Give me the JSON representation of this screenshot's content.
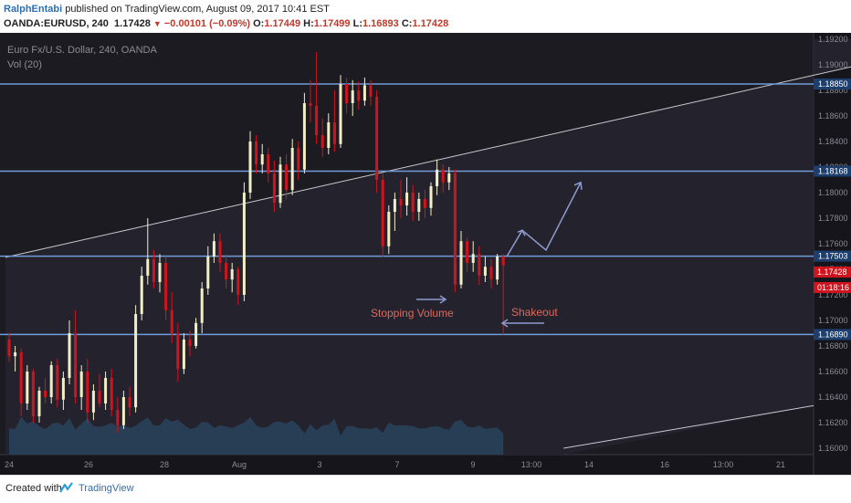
{
  "header": {
    "author": "RalphEntabi",
    "published": "published on TradingView.com, August 09, 2017 10:41 EST",
    "symbol": "OANDA:EURUSD, 240",
    "last": "1.17428",
    "change": "−0.00101 (−0.09%)",
    "o_label": "O:",
    "o_value": "1.17449",
    "h_label": "H:",
    "h_value": "1.17499",
    "l_label": "L:",
    "l_value": "1.16893",
    "c_label": "C:",
    "c_value": "1.17428"
  },
  "legend": {
    "title": "Euro Fx/U.S. Dollar, 240, OANDA",
    "volume": "Vol (20)"
  },
  "annotations": {
    "stopping_volume": "Stopping Volume",
    "shakeout": "Shakeout"
  },
  "price_tags": {
    "last_price": "1.17428",
    "countdown": "01:18:16"
  },
  "footer": {
    "created_with": "Created with",
    "brand": "TradingView"
  },
  "colors": {
    "background": "#1c1b22",
    "bull": "#f2efc8",
    "bear": "#d0141e",
    "level": "#6f9bd8",
    "channel": "#c9c9cf",
    "annotation_text": "#e0685a",
    "arrow": "#8f9bd0",
    "volume_fill": "#2a4a66"
  },
  "chart_data": {
    "type": "candlestick",
    "symbol": "EURUSD",
    "timeframe": "240",
    "y_axis_ticks": [
      "1.19200",
      "1.19000",
      "1.18800",
      "1.18600",
      "1.18400",
      "1.18200",
      "1.18000",
      "1.17800",
      "1.17600",
      "1.17400",
      "1.17200",
      "1.17000",
      "1.16800",
      "1.16600",
      "1.16400",
      "1.16200",
      "1.16000"
    ],
    "ylim": [
      1.1595,
      1.1925
    ],
    "x_axis_ticks": [
      "24",
      "26",
      "28",
      "Aug",
      "3",
      "7",
      "9",
      "13:00",
      "14",
      "16",
      "13:00",
      "21"
    ],
    "horizontal_levels": [
      "1.18850",
      "1.18168",
      "1.17503",
      "1.16890"
    ],
    "channel": {
      "upper": [
        {
          "bar": 0,
          "price": 1.175
        },
        {
          "bar": 160,
          "price": 1.192
        }
      ],
      "lower": [
        {
          "bar": 92,
          "price": 1.16
        },
        {
          "bar": 163,
          "price": 1.1657
        }
      ]
    },
    "projection_path": [
      1.17503,
      1.17705,
      1.1755,
      1.1808
    ],
    "candles": [
      {
        "o": 1.1685,
        "h": 1.169,
        "l": 1.1668,
        "c": 1.1672
      },
      {
        "o": 1.1672,
        "h": 1.168,
        "l": 1.166,
        "c": 1.1675
      },
      {
        "o": 1.1675,
        "h": 1.1678,
        "l": 1.1625,
        "c": 1.1635
      },
      {
        "o": 1.1635,
        "h": 1.1665,
        "l": 1.163,
        "c": 1.166
      },
      {
        "o": 1.166,
        "h": 1.1662,
        "l": 1.162,
        "c": 1.1625
      },
      {
        "o": 1.1625,
        "h": 1.1648,
        "l": 1.162,
        "c": 1.1645
      },
      {
        "o": 1.1645,
        "h": 1.1655,
        "l": 1.1635,
        "c": 1.164
      },
      {
        "o": 1.164,
        "h": 1.1668,
        "l": 1.1635,
        "c": 1.1665
      },
      {
        "o": 1.1665,
        "h": 1.167,
        "l": 1.1632,
        "c": 1.1638
      },
      {
        "o": 1.1638,
        "h": 1.166,
        "l": 1.163,
        "c": 1.1655
      },
      {
        "o": 1.1655,
        "h": 1.17,
        "l": 1.165,
        "c": 1.169
      },
      {
        "o": 1.169,
        "h": 1.1708,
        "l": 1.1635,
        "c": 1.164
      },
      {
        "o": 1.164,
        "h": 1.1665,
        "l": 1.163,
        "c": 1.166
      },
      {
        "o": 1.166,
        "h": 1.167,
        "l": 1.162,
        "c": 1.1628
      },
      {
        "o": 1.1628,
        "h": 1.165,
        "l": 1.1622,
        "c": 1.1645
      },
      {
        "o": 1.1645,
        "h": 1.1658,
        "l": 1.1632,
        "c": 1.1635
      },
      {
        "o": 1.1635,
        "h": 1.166,
        "l": 1.163,
        "c": 1.1655
      },
      {
        "o": 1.1655,
        "h": 1.1662,
        "l": 1.1625,
        "c": 1.163
      },
      {
        "o": 1.163,
        "h": 1.164,
        "l": 1.1612,
        "c": 1.1618
      },
      {
        "o": 1.1618,
        "h": 1.1645,
        "l": 1.1615,
        "c": 1.164
      },
      {
        "o": 1.164,
        "h": 1.1648,
        "l": 1.1625,
        "c": 1.1632
      },
      {
        "o": 1.1632,
        "h": 1.1712,
        "l": 1.1628,
        "c": 1.1705
      },
      {
        "o": 1.1705,
        "h": 1.1742,
        "l": 1.17,
        "c": 1.1735
      },
      {
        "o": 1.1735,
        "h": 1.178,
        "l": 1.1728,
        "c": 1.1748
      },
      {
        "o": 1.1748,
        "h": 1.1755,
        "l": 1.1725,
        "c": 1.173
      },
      {
        "o": 1.173,
        "h": 1.1752,
        "l": 1.1722,
        "c": 1.1745
      },
      {
        "o": 1.1745,
        "h": 1.175,
        "l": 1.17,
        "c": 1.1708
      },
      {
        "o": 1.1708,
        "h": 1.1722,
        "l": 1.1682,
        "c": 1.169
      },
      {
        "o": 1.169,
        "h": 1.1698,
        "l": 1.1652,
        "c": 1.1662
      },
      {
        "o": 1.1662,
        "h": 1.169,
        "l": 1.1658,
        "c": 1.1685
      },
      {
        "o": 1.1685,
        "h": 1.1692,
        "l": 1.1672,
        "c": 1.168
      },
      {
        "o": 1.168,
        "h": 1.1702,
        "l": 1.1678,
        "c": 1.1698
      },
      {
        "o": 1.1698,
        "h": 1.173,
        "l": 1.169,
        "c": 1.1725
      },
      {
        "o": 1.1725,
        "h": 1.1758,
        "l": 1.172,
        "c": 1.175
      },
      {
        "o": 1.175,
        "h": 1.1768,
        "l": 1.1745,
        "c": 1.1762
      },
      {
        "o": 1.1762,
        "h": 1.1768,
        "l": 1.1738,
        "c": 1.1745
      },
      {
        "o": 1.1745,
        "h": 1.1752,
        "l": 1.1725,
        "c": 1.1732
      },
      {
        "o": 1.1732,
        "h": 1.1745,
        "l": 1.1722,
        "c": 1.174
      },
      {
        "o": 1.174,
        "h": 1.1742,
        "l": 1.1712,
        "c": 1.172
      },
      {
        "o": 1.172,
        "h": 1.1808,
        "l": 1.1715,
        "c": 1.18
      },
      {
        "o": 1.18,
        "h": 1.1848,
        "l": 1.1795,
        "c": 1.184
      },
      {
        "o": 1.184,
        "h": 1.1845,
        "l": 1.1815,
        "c": 1.1822
      },
      {
        "o": 1.1822,
        "h": 1.1838,
        "l": 1.1815,
        "c": 1.183
      },
      {
        "o": 1.183,
        "h": 1.1835,
        "l": 1.1808,
        "c": 1.1815
      },
      {
        "o": 1.1815,
        "h": 1.1825,
        "l": 1.1785,
        "c": 1.1792
      },
      {
        "o": 1.1792,
        "h": 1.1828,
        "l": 1.1788,
        "c": 1.1822
      },
      {
        "o": 1.1822,
        "h": 1.183,
        "l": 1.1795,
        "c": 1.1802
      },
      {
        "o": 1.1802,
        "h": 1.1842,
        "l": 1.1798,
        "c": 1.1835
      },
      {
        "o": 1.1835,
        "h": 1.184,
        "l": 1.181,
        "c": 1.1818
      },
      {
        "o": 1.1818,
        "h": 1.1878,
        "l": 1.1815,
        "c": 1.187
      },
      {
        "o": 1.187,
        "h": 1.1888,
        "l": 1.1855,
        "c": 1.1868
      },
      {
        "o": 1.1868,
        "h": 1.191,
        "l": 1.1838,
        "c": 1.1845
      },
      {
        "o": 1.1845,
        "h": 1.1858,
        "l": 1.1828,
        "c": 1.1835
      },
      {
        "o": 1.1835,
        "h": 1.1862,
        "l": 1.183,
        "c": 1.1855
      },
      {
        "o": 1.1855,
        "h": 1.188,
        "l": 1.1832,
        "c": 1.1838
      },
      {
        "o": 1.1838,
        "h": 1.1892,
        "l": 1.1835,
        "c": 1.1885
      },
      {
        "o": 1.1885,
        "h": 1.189,
        "l": 1.1862,
        "c": 1.187
      },
      {
        "o": 1.187,
        "h": 1.1888,
        "l": 1.186,
        "c": 1.188
      },
      {
        "o": 1.188,
        "h": 1.1887,
        "l": 1.1865,
        "c": 1.1872
      },
      {
        "o": 1.1872,
        "h": 1.189,
        "l": 1.1868,
        "c": 1.1884
      },
      {
        "o": 1.1884,
        "h": 1.1888,
        "l": 1.1868,
        "c": 1.1875
      },
      {
        "o": 1.1875,
        "h": 1.188,
        "l": 1.18,
        "c": 1.181
      },
      {
        "o": 1.181,
        "h": 1.1815,
        "l": 1.175,
        "c": 1.1758
      },
      {
        "o": 1.1758,
        "h": 1.179,
        "l": 1.1752,
        "c": 1.1785
      },
      {
        "o": 1.1785,
        "h": 1.18,
        "l": 1.177,
        "c": 1.1795
      },
      {
        "o": 1.1795,
        "h": 1.181,
        "l": 1.178,
        "c": 1.179
      },
      {
        "o": 1.179,
        "h": 1.1812,
        "l": 1.1782,
        "c": 1.18
      },
      {
        "o": 1.18,
        "h": 1.1806,
        "l": 1.1778,
        "c": 1.1785
      },
      {
        "o": 1.1785,
        "h": 1.18,
        "l": 1.1778,
        "c": 1.1795
      },
      {
        "o": 1.1795,
        "h": 1.1802,
        "l": 1.178,
        "c": 1.1788
      },
      {
        "o": 1.1788,
        "h": 1.1808,
        "l": 1.1782,
        "c": 1.1805
      },
      {
        "o": 1.1805,
        "h": 1.1826,
        "l": 1.1798,
        "c": 1.1818
      },
      {
        "o": 1.1818,
        "h": 1.1822,
        "l": 1.18,
        "c": 1.1808
      },
      {
        "o": 1.1808,
        "h": 1.182,
        "l": 1.1802,
        "c": 1.1815
      },
      {
        "o": 1.1815,
        "h": 1.1818,
        "l": 1.1722,
        "c": 1.1728
      },
      {
        "o": 1.1728,
        "h": 1.177,
        "l": 1.1725,
        "c": 1.1762
      },
      {
        "o": 1.1762,
        "h": 1.1765,
        "l": 1.1738,
        "c": 1.1745
      },
      {
        "o": 1.1745,
        "h": 1.1762,
        "l": 1.1738,
        "c": 1.1752
      },
      {
        "o": 1.1752,
        "h": 1.1758,
        "l": 1.1728,
        "c": 1.1735
      },
      {
        "o": 1.1735,
        "h": 1.175,
        "l": 1.173,
        "c": 1.1742
      },
      {
        "o": 1.1742,
        "h": 1.1748,
        "l": 1.1725,
        "c": 1.1732
      },
      {
        "o": 1.1732,
        "h": 1.1752,
        "l": 1.1728,
        "c": 1.175
      },
      {
        "o": 1.175,
        "h": 1.1752,
        "l": 1.1689,
        "c": 1.1743
      }
    ]
  }
}
